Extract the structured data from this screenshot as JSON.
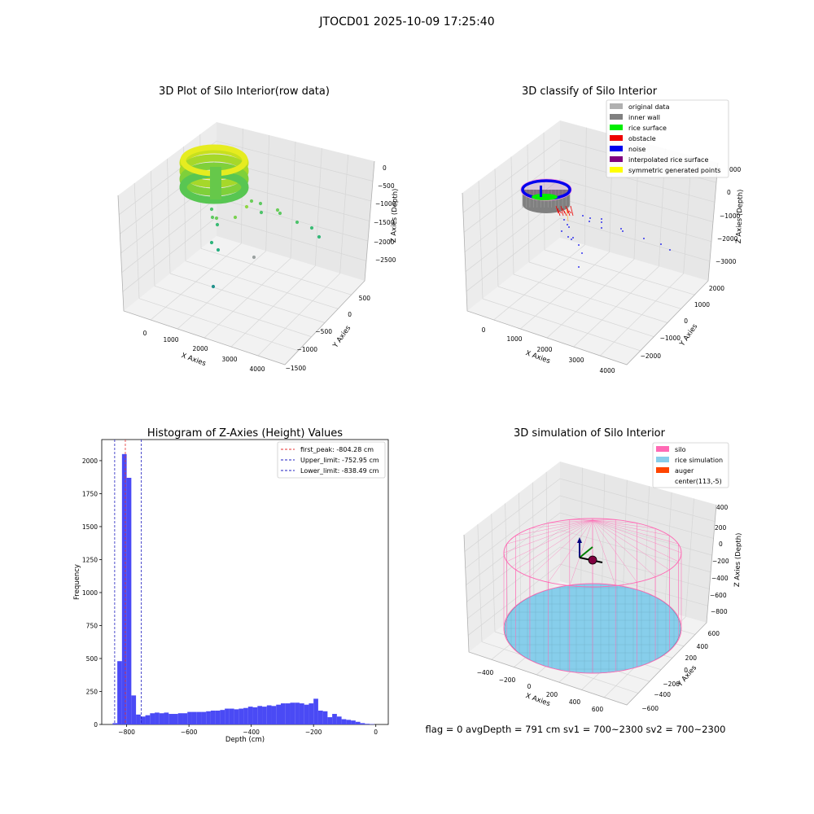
{
  "suptitle": "JTOCD01 2025-10-09 17:25:40",
  "colors": {
    "hist_bar": "#4a4af5",
    "peak_line": "#e53030",
    "limit_line": "#2020c0",
    "silo": "#ff69b4",
    "rice": "#87ceeb",
    "auger": "#ff4500",
    "pane": "#f2f2f2",
    "grid": "#d6d6d6"
  },
  "status_text": "flag = 0     avgDepth = 791 cm  sv1 = 700~2300  sv2 = 700~2300",
  "chart_data": [
    {
      "type": "scatter3d",
      "title": "3D Plot of Silo Interior(row data)",
      "xlabel": "X Axies",
      "ylabel": "Y Axies",
      "zlabel": "Z Axies (Depth)",
      "x_ticks": [
        "0",
        "1000",
        "2000",
        "3000",
        "4000"
      ],
      "y_ticks": [
        "500",
        "0",
        "−500",
        "−1000",
        "−1500"
      ],
      "z_ticks": [
        "0",
        "−500",
        "−1000",
        "−1500",
        "−2000",
        "−2500"
      ],
      "grid": true,
      "colormap": "viridis",
      "points": [
        {
          "x": 600,
          "y": -200,
          "z": -1400
        },
        {
          "x": 600,
          "y": -50,
          "z": -1500
        },
        {
          "x": 650,
          "y": 50,
          "z": -1750
        },
        {
          "x": 800,
          "y": 100,
          "z": -1700
        },
        {
          "x": 1400,
          "y": 150,
          "z": -1350
        },
        {
          "x": 1500,
          "y": 200,
          "z": -1500
        },
        {
          "x": 1800,
          "y": 350,
          "z": -1450
        },
        {
          "x": 1850,
          "y": 350,
          "z": -1550
        },
        {
          "x": 1900,
          "y": 300,
          "z": -1650
        },
        {
          "x": 2600,
          "y": 300,
          "z": -1750
        },
        {
          "x": 2700,
          "y": 350,
          "z": -1700
        },
        {
          "x": 3100,
          "y": 450,
          "z": -1900
        },
        {
          "x": 3600,
          "y": 550,
          "z": -2050
        },
        {
          "x": 3800,
          "y": 500,
          "z": -2200
        },
        {
          "x": 500,
          "y": -400,
          "z": -2000
        },
        {
          "x": 700,
          "y": -300,
          "z": -2150
        },
        {
          "x": 1300,
          "y": 50,
          "z": -2450
        },
        {
          "x": 600,
          "y": -1000,
          "z": -2600
        }
      ]
    },
    {
      "type": "scatter3d",
      "title": "3D classify of Silo Interior",
      "xlabel": "X Axies",
      "ylabel": "Y Axies",
      "zlabel": "Z Axies (Depth)",
      "x_ticks": [
        "0",
        "1000",
        "2000",
        "3000",
        "4000"
      ],
      "y_ticks": [
        "2000",
        "1000",
        "0",
        "−1000",
        "−2000"
      ],
      "z_ticks": [
        "0",
        "−1000",
        "−2000",
        "−3000"
      ],
      "z_partial_tick": "000",
      "grid": true,
      "legend": {
        "placement": "top-right",
        "entries": [
          {
            "label": "original data",
            "color": "#b0b0b0"
          },
          {
            "label": "inner wall",
            "color": "#808080"
          },
          {
            "label": "rice surface",
            "color": "#00ee00"
          },
          {
            "label": "obstacle",
            "color": "#ee0000"
          },
          {
            "label": "noise",
            "color": "#0000ee"
          },
          {
            "label": "interpolated rice surface",
            "color": "#800080"
          },
          {
            "label": "symmetric generated points",
            "color": "#ffff00"
          }
        ]
      }
    },
    {
      "type": "bar",
      "title": "Histogram of Z-Axies (Height) Values",
      "xlabel": "Depth (cm)",
      "ylabel": "Frequency",
      "xlim": [
        -880,
        40
      ],
      "ylim": [
        0,
        2160
      ],
      "x_ticks": [
        -800,
        -600,
        -400,
        -200,
        0
      ],
      "y_ticks": [
        0,
        250,
        500,
        750,
        1000,
        1250,
        1500,
        1750,
        2000
      ],
      "bin_edges": [
        -845,
        -830,
        -815,
        -800,
        -785,
        -770,
        -755,
        -740,
        -725,
        -710,
        -695,
        -680,
        -665,
        -650,
        -635,
        -620,
        -605,
        -590,
        -575,
        -560,
        -545,
        -530,
        -515,
        -500,
        -485,
        -470,
        -455,
        -440,
        -425,
        -410,
        -395,
        -380,
        -365,
        -350,
        -335,
        -320,
        -305,
        -290,
        -275,
        -260,
        -245,
        -230,
        -215,
        -200,
        -185,
        -170,
        -155,
        -140,
        -125,
        -110,
        -95,
        -80,
        -65,
        -50,
        -35,
        -20,
        -5
      ],
      "counts": [
        10,
        480,
        2050,
        1870,
        220,
        75,
        60,
        70,
        85,
        90,
        85,
        90,
        80,
        80,
        85,
        85,
        95,
        95,
        95,
        95,
        100,
        105,
        105,
        110,
        120,
        120,
        115,
        120,
        125,
        135,
        130,
        140,
        135,
        145,
        140,
        150,
        160,
        160,
        165,
        165,
        160,
        150,
        160,
        195,
        105,
        100,
        55,
        80,
        60,
        40,
        35,
        30,
        20,
        10,
        5,
        3
      ],
      "legend": {
        "placement": "top-right",
        "entries": [
          {
            "label": "first_peak: -804.28 cm",
            "value": -804.28,
            "color": "#e53030"
          },
          {
            "label": "Upper_limit: -752.95 cm",
            "value": -752.95,
            "color": "#2020c0"
          },
          {
            "label": "Lower_limit: -838.49 cm",
            "value": -838.49,
            "color": "#2020c0"
          }
        ]
      }
    },
    {
      "type": "surface3d",
      "title": "3D simulation of Silo Interior",
      "xlabel": "X Axies",
      "ylabel": "Y Axies",
      "zlabel": "Z Axies (Depth)",
      "x_ticks": [
        "−400",
        "−200",
        "0",
        "200",
        "400",
        "600"
      ],
      "y_ticks": [
        "600",
        "400",
        "200",
        "0",
        "−200",
        "−400",
        "−600"
      ],
      "z_ticks": [
        "400",
        "200",
        "0",
        "−200",
        "−400",
        "−600",
        "−800"
      ],
      "grid": true,
      "legend": {
        "placement": "top-right",
        "entries": [
          {
            "label": "silo",
            "color": "#ff69b4"
          },
          {
            "label": "rice simulation",
            "color": "#87ceeb"
          },
          {
            "label": "auger",
            "color": "#ff4500"
          },
          {
            "label": "center(113,-5)",
            "color": "none"
          }
        ]
      }
    }
  ]
}
